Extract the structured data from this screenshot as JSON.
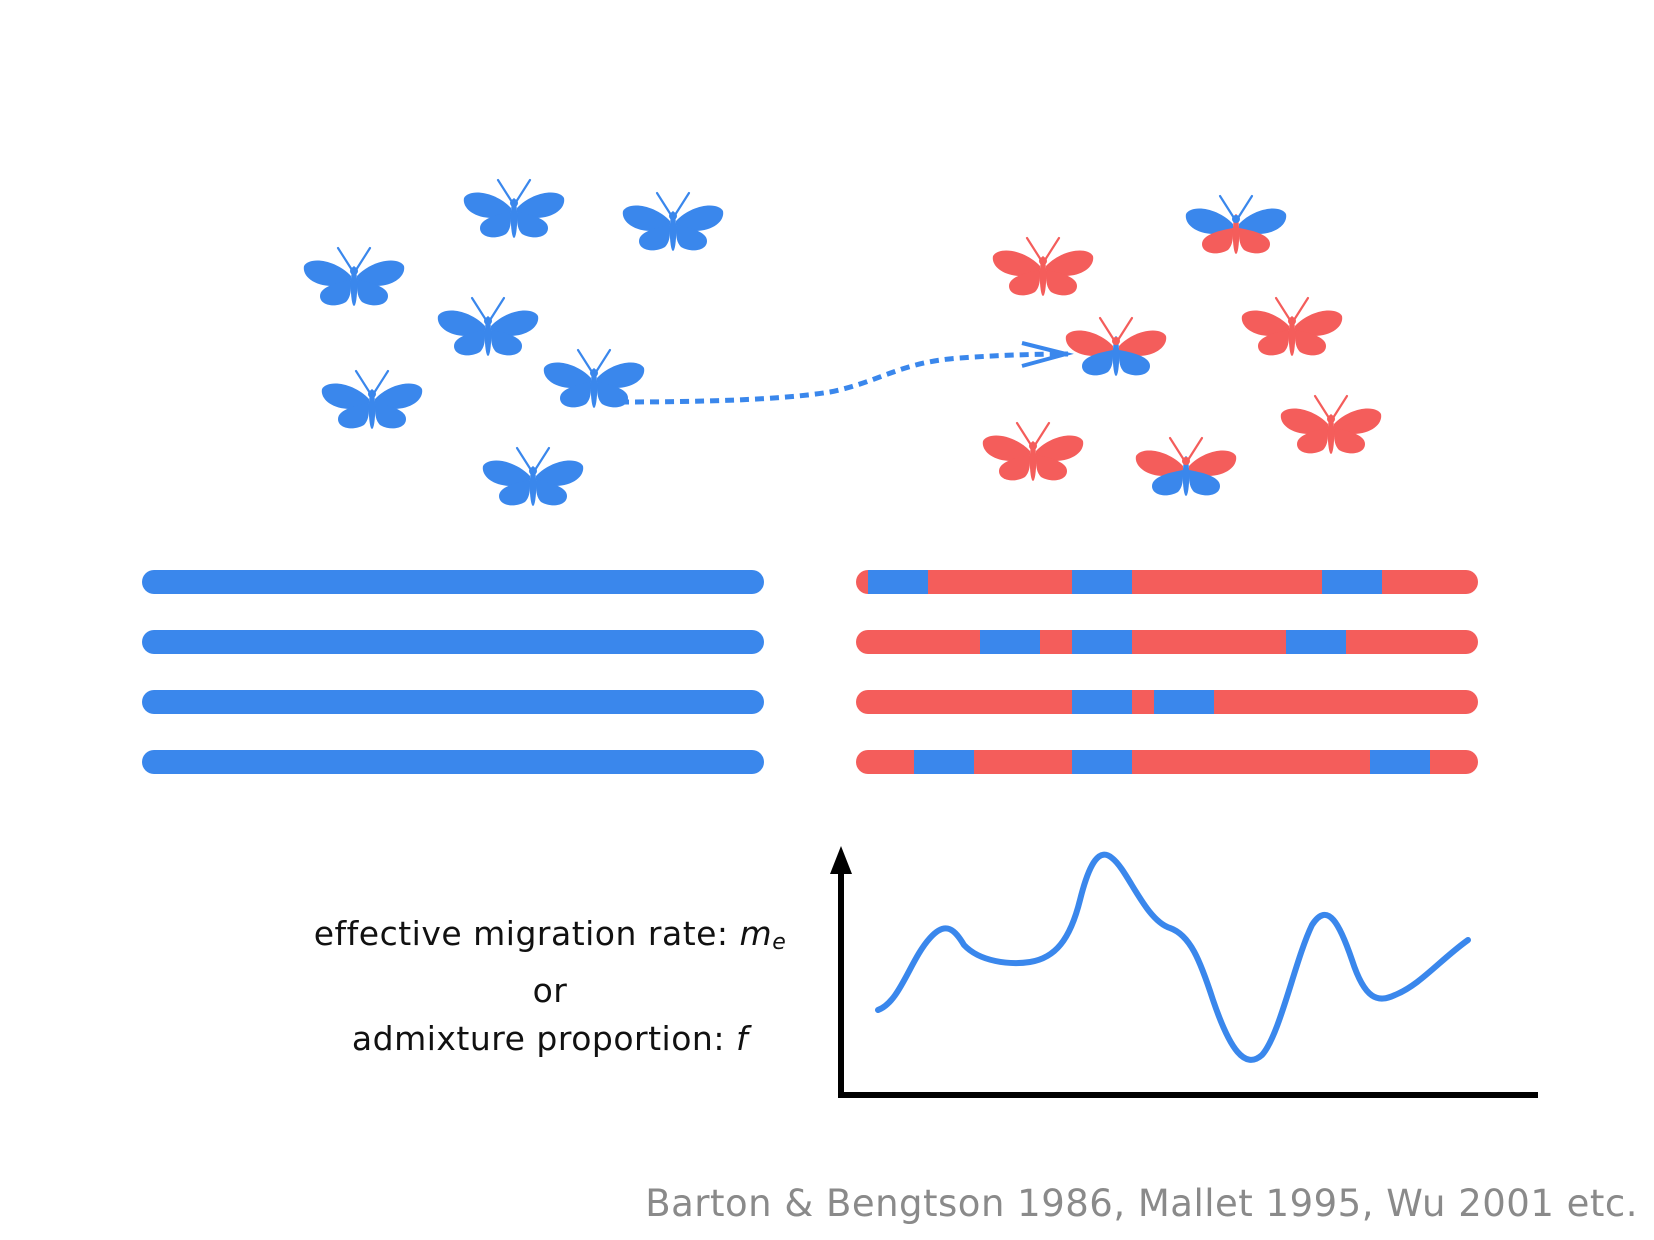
{
  "colors": {
    "population_a": "#3a87ec",
    "population_b": "#f45d5b",
    "axis": "#000000",
    "text": "#111111",
    "citation": "#8a8a8a"
  },
  "butterflies": {
    "population_a": [
      "blue",
      "blue",
      "blue",
      "blue",
      "blue",
      "blue",
      "blue",
      "blue"
    ],
    "population_b": [
      "red",
      "red",
      "red",
      "red",
      "red",
      "red",
      "red",
      "red"
    ],
    "hybrids": [
      "migrant-hybrid",
      "top-hybrid",
      "bottom-hybrid"
    ]
  },
  "chromosomes": {
    "population_a": {
      "count": 4
    },
    "population_b": {
      "count": 4
    }
  },
  "curve": {
    "label_line1": "effective migration rate: ",
    "label_line1_symbol": "m",
    "label_line1_subscript": "e",
    "label_line2": "or",
    "label_line3": "admixture proportion: ",
    "label_line3_symbol": "f"
  },
  "citation": "Barton & Bengtson 1986, Mallet 1995, Wu 2001 etc."
}
